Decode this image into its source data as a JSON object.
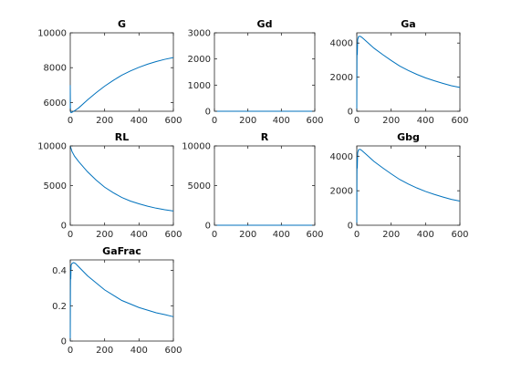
{
  "figure": {
    "background": "#ffffff",
    "axis_color": "#262626",
    "line_color": "#0072bd"
  },
  "chart_data": [
    {
      "type": "line",
      "title": "G",
      "xlim": [
        0,
        600
      ],
      "ylim": [
        5500,
        10000
      ],
      "xticks": [
        0,
        200,
        400,
        600
      ],
      "yticks": [
        6000,
        8000,
        10000
      ],
      "xtick_labels": [
        "0",
        "200",
        "400",
        "600"
      ],
      "ytick_labels": [
        "6000",
        "8000",
        "10000"
      ],
      "series": [
        {
          "x": [
            0,
            0,
            1,
            2,
            5,
            10,
            20,
            30,
            50,
            100,
            150,
            200,
            250,
            300,
            350,
            400,
            450,
            500,
            550,
            600
          ],
          "y": [
            5600,
            7000,
            5600,
            5450,
            5420,
            5440,
            5500,
            5560,
            5700,
            6150,
            6560,
            6940,
            7270,
            7570,
            7810,
            8020,
            8200,
            8350,
            8480,
            8580
          ]
        }
      ]
    },
    {
      "type": "line",
      "title": "Gd",
      "xlim": [
        0,
        600
      ],
      "ylim": [
        0,
        3000
      ],
      "xticks": [
        0,
        200,
        400,
        600
      ],
      "yticks": [
        0,
        1000,
        2000,
        3000
      ],
      "xtick_labels": [
        "0",
        "200",
        "400",
        "600"
      ],
      "ytick_labels": [
        "0",
        "1000",
        "2000",
        "3000"
      ],
      "series": [
        {
          "x": [
            0,
            600
          ],
          "y": [
            0,
            0
          ]
        }
      ]
    },
    {
      "type": "line",
      "title": "Ga",
      "xlim": [
        0,
        600
      ],
      "ylim": [
        0,
        4600
      ],
      "xticks": [
        0,
        200,
        400,
        600
      ],
      "yticks": [
        0,
        2000,
        4000
      ],
      "xtick_labels": [
        "0",
        "200",
        "400",
        "600"
      ],
      "ytick_labels": [
        "0",
        "2000",
        "4000"
      ],
      "series": [
        {
          "x": [
            0,
            1,
            2,
            3,
            5,
            10,
            20,
            30,
            50,
            100,
            150,
            200,
            250,
            300,
            350,
            400,
            450,
            500,
            550,
            600
          ],
          "y": [
            0,
            2900,
            4000,
            3300,
            4200,
            4380,
            4400,
            4330,
            4150,
            3700,
            3330,
            2980,
            2650,
            2390,
            2160,
            1960,
            1790,
            1640,
            1500,
            1400
          ]
        }
      ]
    },
    {
      "type": "line",
      "title": "RL",
      "xlim": [
        0,
        600
      ],
      "ylim": [
        0,
        10000
      ],
      "xticks": [
        0,
        200,
        400,
        600
      ],
      "yticks": [
        0,
        5000,
        10000
      ],
      "xtick_labels": [
        "0",
        "200",
        "400",
        "600"
      ],
      "ytick_labels": [
        "0",
        "5000",
        "10000"
      ],
      "series": [
        {
          "x": [
            0,
            10,
            25,
            50,
            100,
            150,
            200,
            250,
            300,
            350,
            400,
            450,
            500,
            550,
            600
          ],
          "y": [
            10000,
            9300,
            8700,
            8000,
            6750,
            5700,
            4800,
            4100,
            3500,
            3050,
            2700,
            2400,
            2150,
            1950,
            1800
          ]
        }
      ]
    },
    {
      "type": "line",
      "title": "R",
      "xlim": [
        0,
        600
      ],
      "ylim": [
        0,
        10000
      ],
      "xticks": [
        0,
        200,
        400,
        600
      ],
      "yticks": [
        0,
        5000,
        10000
      ],
      "xtick_labels": [
        "0",
        "200",
        "400",
        "600"
      ],
      "ytick_labels": [
        "0",
        "5000",
        "10000"
      ],
      "series": [
        {
          "x": [
            0,
            600
          ],
          "y": [
            0,
            0
          ]
        }
      ]
    },
    {
      "type": "line",
      "title": "Gbg",
      "xlim": [
        0,
        600
      ],
      "ylim": [
        0,
        4600
      ],
      "xticks": [
        0,
        200,
        400,
        600
      ],
      "yticks": [
        0,
        2000,
        4000
      ],
      "xtick_labels": [
        "0",
        "200",
        "400",
        "600"
      ],
      "ytick_labels": [
        "0",
        "2000",
        "4000"
      ],
      "series": [
        {
          "x": [
            0,
            1,
            2,
            3,
            5,
            10,
            20,
            30,
            50,
            100,
            150,
            200,
            250,
            300,
            350,
            400,
            450,
            500,
            550,
            600
          ],
          "y": [
            0,
            2900,
            4000,
            3300,
            4200,
            4380,
            4400,
            4330,
            4150,
            3700,
            3330,
            2980,
            2650,
            2390,
            2160,
            1960,
            1790,
            1640,
            1500,
            1400
          ]
        }
      ]
    },
    {
      "type": "line",
      "title": "GaFrac",
      "xlim": [
        0,
        600
      ],
      "ylim": [
        0,
        0.46
      ],
      "xticks": [
        0,
        200,
        400,
        600
      ],
      "yticks": [
        0,
        0.2,
        0.4
      ],
      "xtick_labels": [
        "0",
        "200",
        "400",
        "600"
      ],
      "ytick_labels": [
        "0",
        "0.2",
        "0.4"
      ],
      "series": [
        {
          "x": [
            0,
            1,
            2,
            3,
            5,
            10,
            20,
            30,
            50,
            100,
            150,
            200,
            250,
            300,
            350,
            400,
            450,
            500,
            550,
            600
          ],
          "y": [
            0,
            0.29,
            0.42,
            0.35,
            0.43,
            0.44,
            0.445,
            0.44,
            0.42,
            0.37,
            0.33,
            0.29,
            0.26,
            0.23,
            0.21,
            0.19,
            0.175,
            0.16,
            0.15,
            0.138
          ]
        }
      ]
    }
  ]
}
